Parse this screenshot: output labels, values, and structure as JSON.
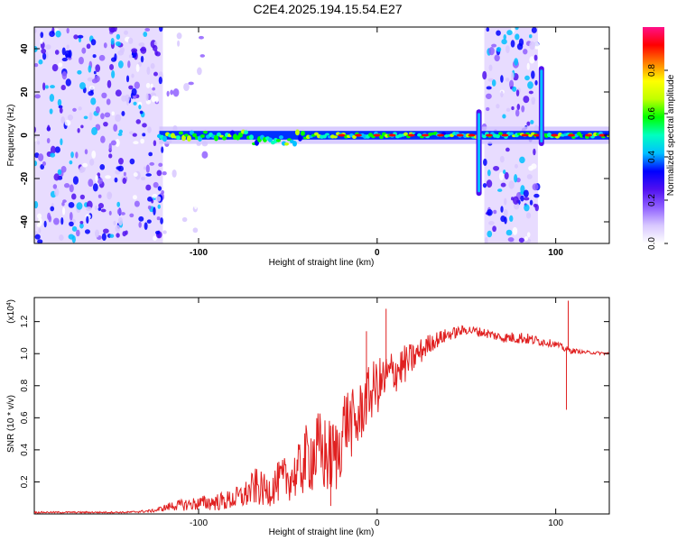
{
  "page_title": "C2E4.2025.194.15.54.E27",
  "chart_data": [
    {
      "type": "heatmap",
      "title": "C2E4.2025.194.15.54.E27",
      "xlabel": "Height of straight line (km)",
      "ylabel": "Frequency (Hz)",
      "xlim": [
        -192,
        130
      ],
      "ylim": [
        -50,
        50
      ],
      "xticks": [
        -100,
        0,
        100
      ],
      "yticks": [
        -40,
        -20,
        0,
        20,
        40
      ],
      "colorbar": {
        "label": "Normalized spectral amplitude",
        "range": [
          0,
          1
        ],
        "ticks": [
          0.0,
          0.2,
          0.4,
          0.6,
          0.8
        ],
        "tick_labels": [
          "0.0",
          "0.2",
          "0.4",
          "0.6",
          "0.8"
        ],
        "colormap": [
          "#ffffff",
          "#d8c8ff",
          "#9060ff",
          "#5010f0",
          "#0000ff",
          "#00c0ff",
          "#00ffc0",
          "#00ff00",
          "#c0ff00",
          "#ffff00",
          "#ff8000",
          "#ff0000",
          "#ff1088"
        ]
      },
      "regions": [
        {
          "kind": "noise",
          "x_range": [
            -192,
            -120
          ],
          "f_range": [
            -50,
            50
          ],
          "level": 0.2
        },
        {
          "kind": "noise-sparse",
          "x_range": [
            -120,
            -95
          ],
          "f_range": [
            -50,
            50
          ],
          "level": 0.08
        },
        {
          "kind": "noise",
          "x_range": [
            60,
            90
          ],
          "f_range": [
            -50,
            50
          ],
          "level": 0.2
        },
        {
          "kind": "signal",
          "x_range": [
            -122,
            130
          ],
          "f_center": 0,
          "level": 0.55,
          "comment_free": true
        },
        {
          "kind": "spike",
          "x": 57,
          "f_range": [
            -28,
            12
          ],
          "level": 0.3
        },
        {
          "kind": "spike",
          "x": 92,
          "f_range": [
            -5,
            32
          ],
          "level": 0.3
        }
      ],
      "colors": {
        "background": "#ffffff",
        "noise": "#6a20f0"
      }
    },
    {
      "type": "line",
      "xlabel": "Height of straight line (km)",
      "ylabel": "SNR (10 * v/v)",
      "y_multiplier": "(x10^4)",
      "xlim": [
        -192,
        130
      ],
      "ylim": [
        0,
        1.35
      ],
      "xticks": [
        -100,
        0,
        100
      ],
      "yticks": [
        0.2,
        0.4,
        0.6,
        0.8,
        1.0,
        1.2
      ],
      "color": "#e02020",
      "x": [
        -192,
        -180,
        -160,
        -140,
        -125,
        -115,
        -105,
        -95,
        -85,
        -75,
        -68,
        -62,
        -55,
        -45,
        -38,
        -32,
        -27,
        -22,
        -18,
        -12,
        -6,
        -2,
        3,
        8,
        14,
        20,
        30,
        40,
        50,
        60,
        70,
        80,
        90,
        100,
        105,
        108,
        115,
        130
      ],
      "values": [
        0.01,
        0.01,
        0.01,
        0.01,
        0.02,
        0.05,
        0.06,
        0.07,
        0.08,
        0.11,
        0.17,
        0.14,
        0.2,
        0.25,
        0.37,
        0.38,
        0.35,
        0.37,
        0.59,
        0.55,
        0.72,
        0.78,
        0.82,
        0.88,
        0.92,
        0.97,
        1.07,
        1.12,
        1.15,
        1.13,
        1.1,
        1.1,
        1.08,
        1.06,
        1.03,
        1.02,
        1.01,
        1.0
      ],
      "noise": [
        0.005,
        0.005,
        0.005,
        0.005,
        0.01,
        0.03,
        0.04,
        0.05,
        0.06,
        0.08,
        0.12,
        0.1,
        0.13,
        0.16,
        0.24,
        0.27,
        0.25,
        0.24,
        0.22,
        0.22,
        0.18,
        0.18,
        0.17,
        0.15,
        0.13,
        0.1,
        0.06,
        0.04,
        0.03,
        0.03,
        0.03,
        0.04,
        0.03,
        0.02,
        0.02,
        0.02,
        0.01,
        0.01
      ],
      "spikes": [
        {
          "x": 5,
          "y": 1.28
        },
        {
          "x": -6,
          "y": 1.14
        },
        {
          "x": 106,
          "y": 0.65
        },
        {
          "x": 107,
          "y": 1.33
        },
        {
          "x": -26,
          "y": 0.05
        }
      ]
    }
  ]
}
